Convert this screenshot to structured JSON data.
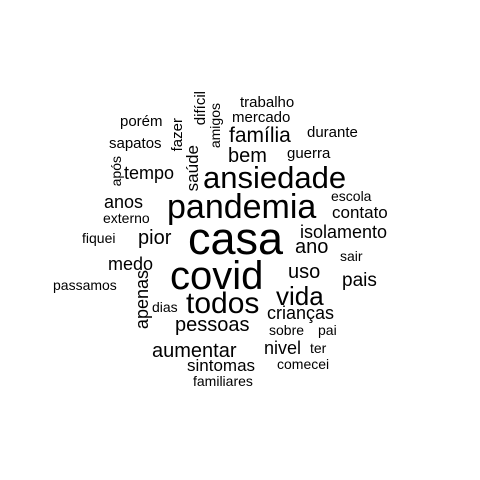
{
  "text_color": "#000000",
  "background_color": "#ffffff",
  "words": {
    "casa": "casa",
    "covid": "covid",
    "pandemia": "pandemia",
    "ansiedade": "ansiedade",
    "todos": "todos",
    "vida": "vida",
    "aumentar": "aumentar",
    "pessoas": "pessoas",
    "familia": "família",
    "bem": "bem",
    "tempo": "tempo",
    "pior": "pior",
    "ano": "ano",
    "isolamento": "isolamento",
    "contato": "contato",
    "uso": "uso",
    "pais": "pais",
    "anos": "anos",
    "medo": "medo",
    "criancas": "crianças",
    "apenas": "apenas",
    "nivel": "nivel",
    "sintomas": "sintomas",
    "saude": "saúde",
    "fazer": "fazer",
    "dificil": "difícil",
    "amigos": "amigos",
    "trabalho": "trabalho",
    "mercado": "mercado",
    "durante": "durante",
    "porem": "porém",
    "sapatos": "sapatos",
    "guerra": "guerra",
    "apos": "após",
    "escola": "escola",
    "externo": "externo",
    "fiquei": "fiquei",
    "sair": "sair",
    "passamos": "passamos",
    "dias": "dias",
    "sobre": "sobre",
    "pai": "pai",
    "ter": "ter",
    "comecei": "comecei",
    "familiares": "familiares"
  }
}
